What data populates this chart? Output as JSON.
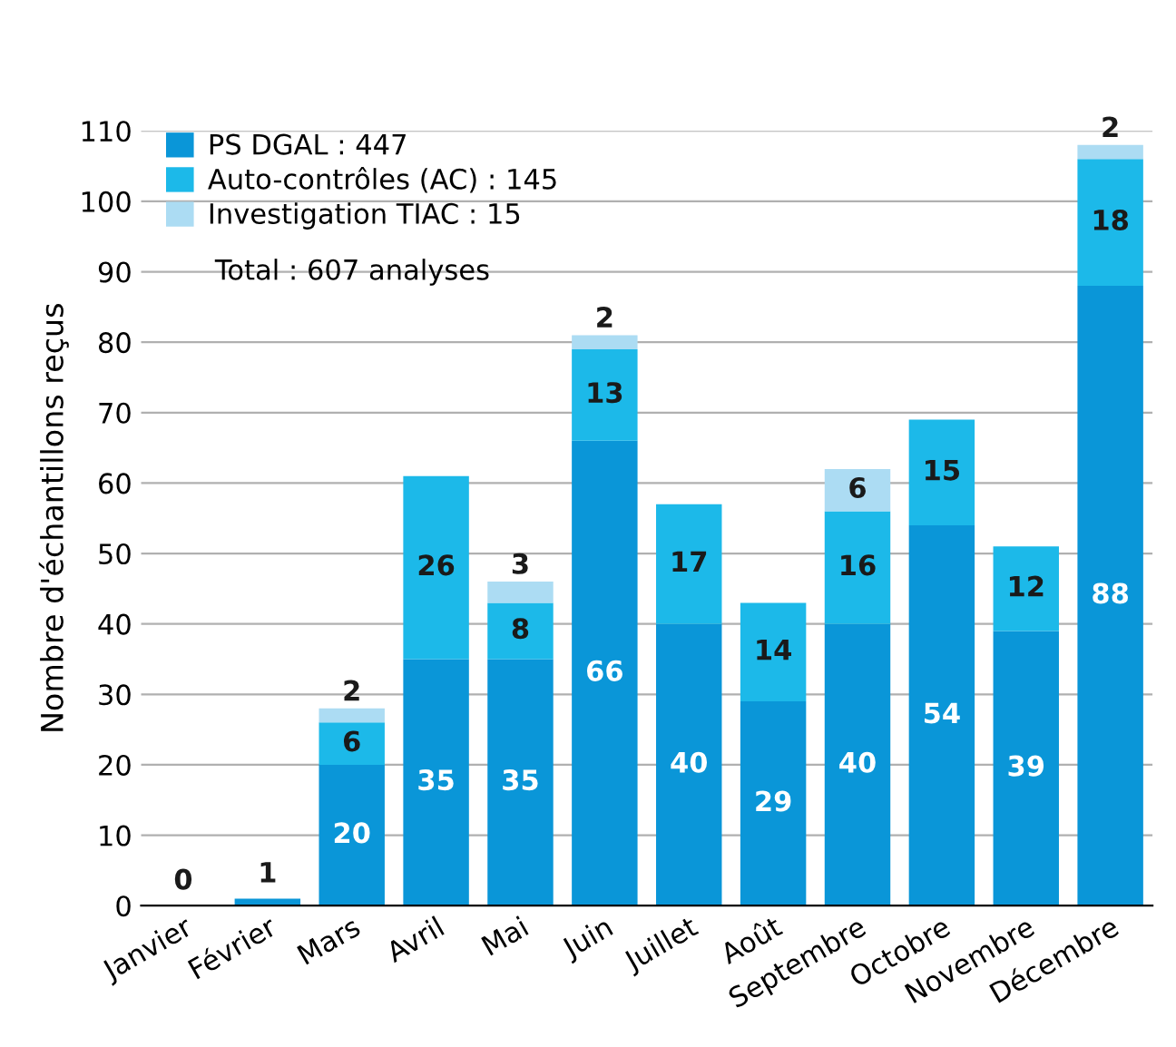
{
  "chart_data": {
    "type": "bar",
    "stacked": true,
    "ylabel": "Nombre d'échantillons reçus",
    "categories": [
      "Janvier",
      "Février",
      "Mars",
      "Avril",
      "Mai",
      "Juin",
      "Juillet",
      "Août",
      "Septembre",
      "Octobre",
      "Novembre",
      "Décembre"
    ],
    "series": [
      {
        "name": "PS DGAL : 447",
        "color": "#0a96d8",
        "values": [
          0,
          1,
          20,
          35,
          35,
          66,
          40,
          29,
          40,
          54,
          39,
          88
        ],
        "value_labels": [
          "0",
          "1",
          "20",
          "35",
          "35",
          "66",
          "40",
          "29",
          "40",
          "54",
          "39",
          "88"
        ]
      },
      {
        "name": "Auto-contrôles (AC) : 145",
        "color": "#1cb9e9",
        "values": [
          0,
          0,
          6,
          26,
          8,
          13,
          17,
          14,
          16,
          15,
          12,
          18
        ],
        "value_labels": [
          null,
          null,
          "6",
          "26",
          "8",
          "13",
          "17",
          "14",
          "16",
          "15",
          "12",
          "18"
        ]
      },
      {
        "name": "Investigation TIAC : 15",
        "color": "#acdcf3",
        "values": [
          0,
          0,
          2,
          0,
          3,
          2,
          0,
          0,
          6,
          0,
          0,
          2
        ],
        "value_labels": [
          null,
          null,
          "2",
          null,
          "3",
          "2",
          null,
          null,
          "6",
          null,
          null,
          "2"
        ]
      }
    ],
    "annotations": [
      "Total : 607 analyses"
    ],
    "ylim": [
      0,
      110
    ],
    "yticks": [
      0,
      10,
      20,
      30,
      40,
      50,
      60,
      70,
      80,
      90,
      100,
      110
    ],
    "grid": "y",
    "legend": "top left"
  }
}
